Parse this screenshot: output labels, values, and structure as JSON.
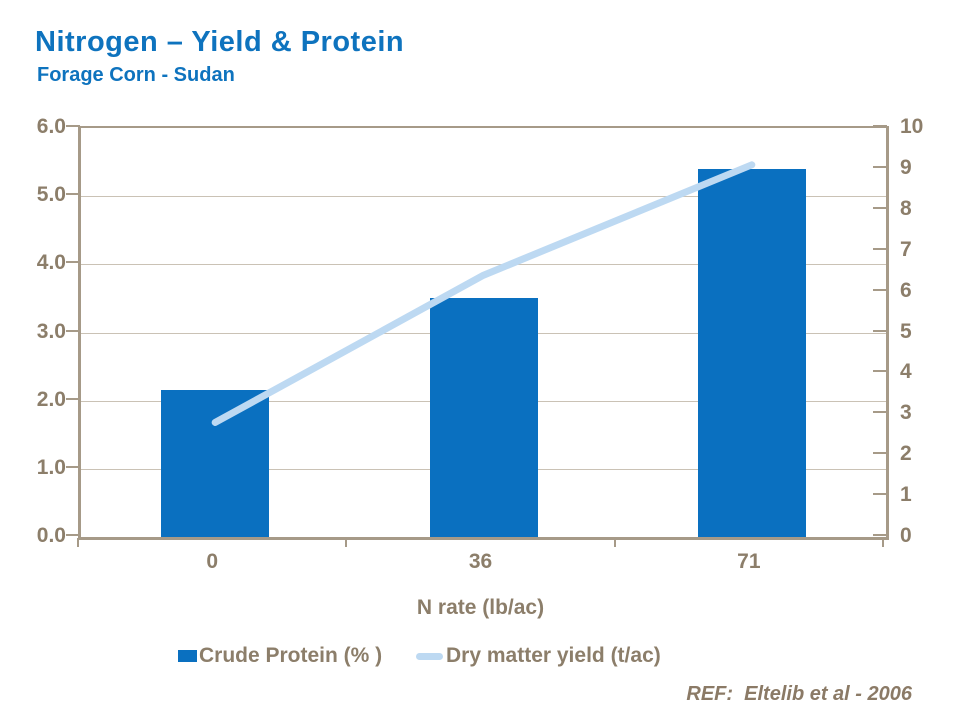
{
  "header": {
    "title": "Nitrogen – Yield & Protein",
    "subtitle": "Forage Corn - Sudan"
  },
  "footer": {
    "reference": "REF:  Eltelib et al - 2006"
  },
  "legend": {
    "crude_protein_label": "Crude Protein (% )",
    "dry_matter_label": "Dry matter yield (t/ac)"
  },
  "chart_data": {
    "type": "bar+line (dual axis)",
    "categories": [
      "0",
      "36",
      "71"
    ],
    "series": [
      {
        "name": "Crude Protein (%)",
        "type": "bar",
        "axis": "left",
        "values": [
          2.15,
          3.5,
          5.4
        ]
      },
      {
        "name": "Dry matter yield (t/ac)",
        "type": "line",
        "axis": "right",
        "values": [
          2.8,
          6.4,
          9.1
        ]
      }
    ],
    "xlabel": "N rate (lb/ac)",
    "left_axis": {
      "min": 0,
      "max": 6,
      "tick_labels": [
        "6.0",
        "5.0",
        "4.0",
        "3.0",
        "2.0",
        "1.0",
        "0.0"
      ]
    },
    "right_axis": {
      "min": 0,
      "max": 10,
      "tick_labels": [
        "10",
        "9",
        "8",
        "7",
        "6",
        "5",
        "4",
        "3",
        "2",
        "1",
        "0"
      ]
    },
    "grid": "horizontal gridlines at left-axis integers",
    "legend_position": "bottom",
    "colors": {
      "bar": "#0a70c0",
      "line": "#bdd9f2",
      "title_text": "#0e73be",
      "axis_text": "#8c7e6a",
      "axis_line": "#a69a88",
      "gridline": "#cac2b5",
      "background": "#ffffff"
    }
  }
}
